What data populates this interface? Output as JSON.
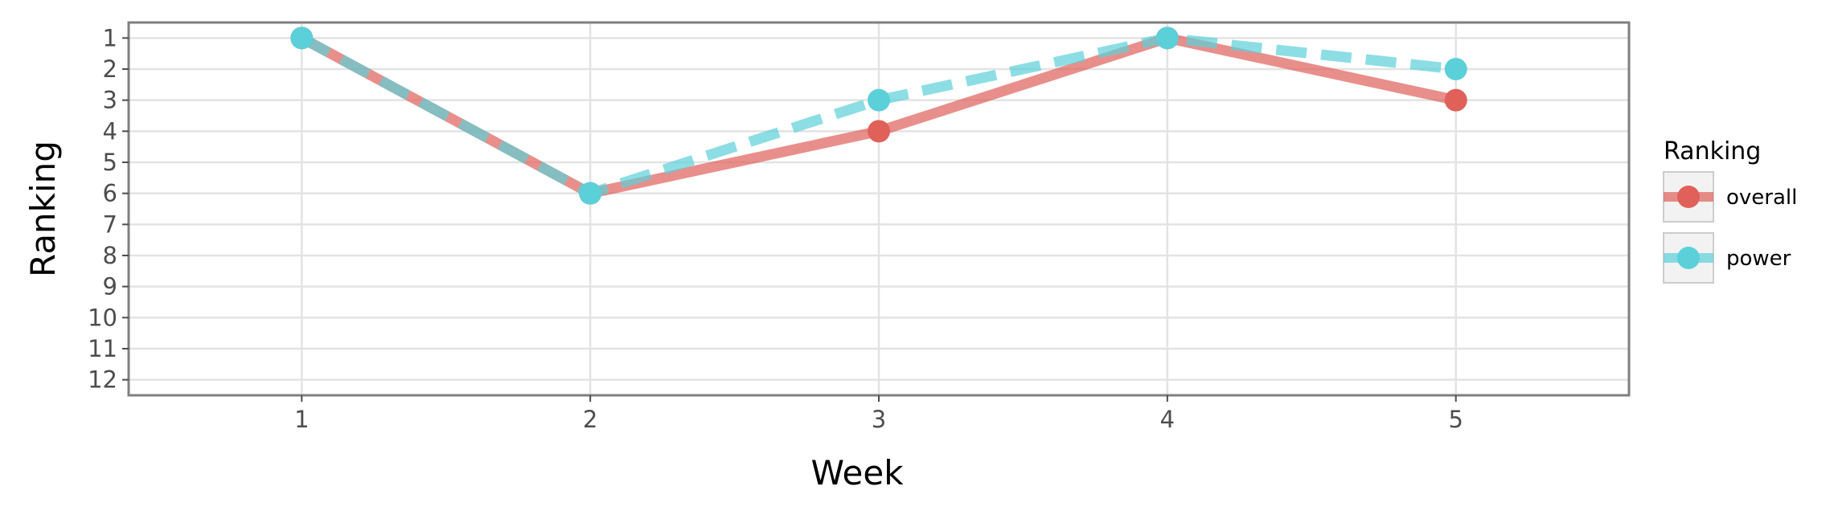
{
  "chart_data": {
    "type": "line",
    "title": "",
    "xlabel": "Week",
    "ylabel": "Ranking",
    "x": [
      1,
      2,
      3,
      4,
      5
    ],
    "x_ticks": [
      "1",
      "2",
      "3",
      "4",
      "5"
    ],
    "xlim": [
      0.4,
      5.6
    ],
    "y_ticks": [
      "1",
      "2",
      "3",
      "4",
      "5",
      "6",
      "7",
      "8",
      "9",
      "10",
      "11",
      "12"
    ],
    "ylim": [
      12.5,
      0.5
    ],
    "y_reversed": true,
    "grid": true,
    "legend_title": "Ranking",
    "legend_position": "right",
    "series": [
      {
        "name": "overall",
        "values": [
          1,
          6,
          4,
          1,
          3
        ],
        "color": "#e0605a",
        "line_style": "solid"
      },
      {
        "name": "power",
        "values": [
          1,
          6,
          3,
          1,
          2
        ],
        "color": "#5bd0d9",
        "line_style": "dashed"
      }
    ]
  }
}
